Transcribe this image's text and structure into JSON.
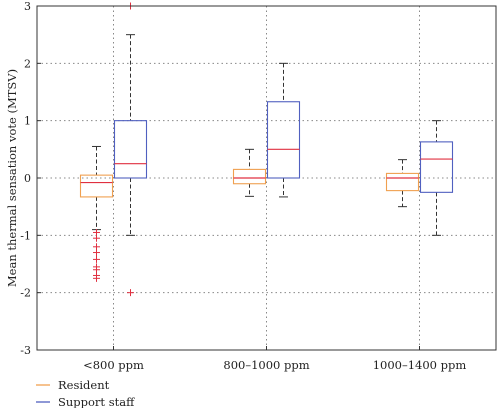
{
  "chart_data": {
    "type": "boxplot",
    "ylabel": "Mean thermal sensation vote (MTSV)",
    "ylim": [
      -3,
      3
    ],
    "yticks": [
      -3,
      -2,
      -1,
      0,
      1,
      2,
      3
    ],
    "grid": true,
    "legend_position": "below-left",
    "categories": [
      "<800 ppm",
      "800–1000 ppm",
      "1000–1400 ppm"
    ],
    "series": [
      {
        "name": "Resident",
        "color": "#f0a050",
        "boxes": [
          {
            "min": -0.9,
            "q1": -0.33,
            "median": -0.08,
            "q3": 0.05,
            "max": 0.55,
            "outliers": [
              -0.95,
              -1.05,
              -1.2,
              -1.3,
              -1.42,
              -1.55,
              -1.6,
              -1.7,
              -1.75
            ]
          },
          {
            "min": -0.32,
            "q1": -0.1,
            "median": 0.0,
            "q3": 0.15,
            "max": 0.5,
            "outliers": []
          },
          {
            "min": -0.5,
            "q1": -0.22,
            "median": 0.0,
            "q3": 0.08,
            "max": 0.32,
            "outliers": []
          }
        ]
      },
      {
        "name": "Support staff",
        "color": "#5060c0",
        "boxes": [
          {
            "min": -1.0,
            "q1": 0.0,
            "median": 0.25,
            "q3": 1.0,
            "max": 2.5,
            "outliers": [
              3.0,
              -2.0
            ]
          },
          {
            "min": -0.33,
            "q1": 0.0,
            "median": 0.5,
            "q3": 1.33,
            "max": 2.0,
            "outliers": []
          },
          {
            "min": -1.0,
            "q1": -0.25,
            "median": 0.33,
            "q3": 0.63,
            "max": 1.0,
            "outliers": []
          }
        ]
      }
    ],
    "median_color": "#e03040",
    "outlier_color": "#e03040"
  }
}
